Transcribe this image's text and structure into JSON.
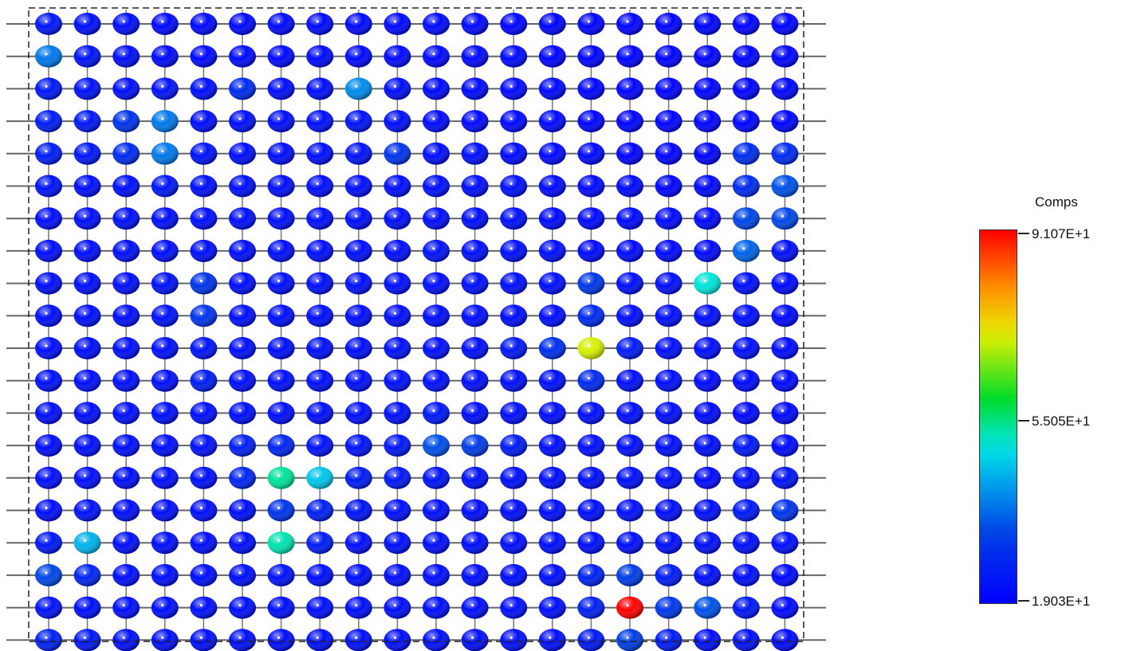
{
  "chart_data": {
    "type": "heatmap",
    "rows": 20,
    "cols": 20,
    "legend": {
      "title": "Comps",
      "max_label": "9.107E+1",
      "mid_label": "5.505E+1",
      "min_label": "1.903E+1",
      "min": 19.03,
      "max": 91.07
    },
    "values": [
      [
        24,
        22,
        22,
        21,
        21,
        21,
        21,
        21,
        21,
        21,
        21,
        21,
        20,
        20,
        20,
        20,
        20,
        20,
        20,
        20
      ],
      [
        38,
        23,
        22,
        21,
        21,
        21,
        21,
        21,
        21,
        21,
        21,
        21,
        21,
        20,
        20,
        20,
        20,
        20,
        20,
        20
      ],
      [
        24,
        23,
        22,
        23,
        22,
        28,
        22,
        22,
        40,
        22,
        21,
        21,
        21,
        21,
        20,
        20,
        20,
        20,
        20,
        20
      ],
      [
        25,
        24,
        30,
        38,
        22,
        22,
        22,
        22,
        23,
        22,
        21,
        21,
        21,
        21,
        20,
        20,
        20,
        20,
        20,
        20
      ],
      [
        25,
        24,
        28,
        38,
        23,
        22,
        22,
        22,
        23,
        30,
        22,
        22,
        21,
        21,
        21,
        20,
        20,
        20,
        29,
        28
      ],
      [
        23,
        22,
        22,
        24,
        22,
        22,
        22,
        22,
        22,
        22,
        22,
        22,
        22,
        21,
        21,
        21,
        20,
        21,
        28,
        34
      ],
      [
        22,
        22,
        22,
        22,
        22,
        22,
        22,
        22,
        22,
        22,
        22,
        22,
        22,
        21,
        21,
        21,
        21,
        21,
        33,
        33
      ],
      [
        22,
        22,
        22,
        22,
        22,
        22,
        22,
        22,
        22,
        22,
        23,
        22,
        22,
        22,
        21,
        21,
        21,
        21,
        36,
        22
      ],
      [
        22,
        22,
        22,
        23,
        30,
        22,
        22,
        22,
        22,
        22,
        22,
        22,
        22,
        22,
        31,
        22,
        22,
        50,
        22,
        21
      ],
      [
        22,
        22,
        22,
        23,
        30,
        22,
        22,
        22,
        22,
        22,
        22,
        22,
        22,
        22,
        28,
        22,
        22,
        22,
        22,
        21
      ],
      [
        22,
        22,
        22,
        22,
        23,
        22,
        22,
        22,
        22,
        22,
        22,
        22,
        24,
        29,
        70,
        25,
        22,
        22,
        22,
        21
      ],
      [
        22,
        22,
        22,
        22,
        25,
        22,
        22,
        22,
        22,
        22,
        22,
        22,
        22,
        22,
        28,
        22,
        22,
        21,
        21,
        21
      ],
      [
        22,
        22,
        22,
        22,
        22,
        22,
        22,
        22,
        22,
        22,
        24,
        22,
        22,
        22,
        22,
        22,
        22,
        21,
        21,
        21
      ],
      [
        22,
        22,
        22,
        22,
        23,
        26,
        27,
        23,
        23,
        24,
        34,
        32,
        25,
        22,
        22,
        22,
        22,
        22,
        24,
        21
      ],
      [
        22,
        22,
        22,
        22,
        22,
        27,
        53,
        46,
        25,
        24,
        23,
        22,
        22,
        22,
        22,
        22,
        22,
        21,
        22,
        23
      ],
      [
        22,
        23,
        22,
        22,
        22,
        22,
        30,
        26,
        23,
        22,
        22,
        22,
        22,
        22,
        22,
        22,
        22,
        22,
        24,
        30
      ],
      [
        24,
        44,
        22,
        22,
        22,
        22,
        52,
        25,
        22,
        22,
        22,
        22,
        22,
        22,
        22,
        22,
        22,
        22,
        22,
        22
      ],
      [
        33,
        27,
        22,
        22,
        22,
        22,
        23,
        22,
        22,
        22,
        22,
        22,
        22,
        22,
        26,
        32,
        25,
        22,
        22,
        21
      ],
      [
        23,
        22,
        22,
        22,
        22,
        22,
        22,
        22,
        22,
        22,
        22,
        22,
        22,
        22,
        26,
        91,
        31,
        34,
        24,
        21
      ],
      [
        26,
        24,
        22,
        22,
        22,
        22,
        22,
        22,
        22,
        22,
        22,
        22,
        22,
        22,
        24,
        32,
        25,
        22,
        22,
        21
      ]
    ]
  }
}
